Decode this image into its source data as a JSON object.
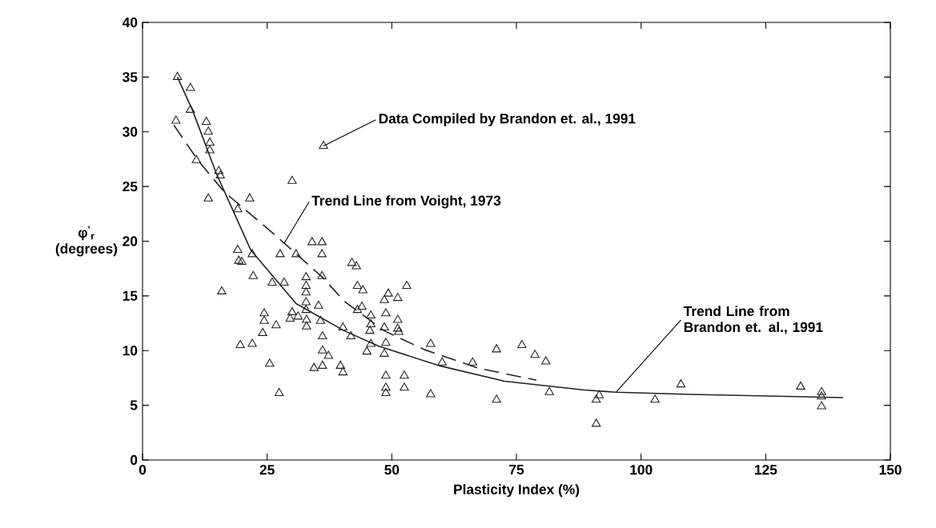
{
  "chart_data": {
    "type": "scatter",
    "xlabel": "Plasticity Index (%)",
    "ylabel": "φ$^{'}$$_{r}$ (degrees)",
    "xlim": [
      0,
      150
    ],
    "ylim": [
      0,
      40
    ],
    "xticks": [
      0,
      25,
      50,
      75,
      100,
      125,
      150
    ],
    "yticks": [
      0,
      5,
      10,
      15,
      20,
      25,
      30,
      35,
      40
    ],
    "grid": false,
    "marker": "triangle",
    "series": [
      {
        "color": "#222222",
        "x": [
          7,
          9.6,
          9.6,
          6.7,
          12.8,
          13.2,
          13.5,
          13.5,
          10.8,
          30,
          36.3,
          15.3,
          15.6,
          13.2,
          21.5,
          19.1,
          19.1,
          19.3,
          19.9,
          22,
          15.9,
          22.2,
          19.6,
          22,
          27.6,
          30.8,
          34,
          36,
          36,
          36,
          42,
          42.9,
          26,
          28.4,
          32.8,
          32.8,
          32.8,
          32.8,
          32.8,
          35.3,
          30,
          29.6,
          31.2,
          32.9,
          32.9,
          24.4,
          24.4,
          26.8,
          24.1,
          35.7,
          36.1,
          36.1,
          36.1,
          37.3,
          34.4,
          39.7,
          40.2,
          40.2,
          41.8,
          43.1,
          44.2,
          43.1,
          44,
          45.6,
          45.8,
          45.8,
          45.8,
          45,
          48.5,
          48.8,
          48.5,
          51.4,
          53,
          49.3,
          51.2,
          51.2,
          51.2,
          48.8,
          48.5,
          48.8,
          48.8,
          48.8,
          52.5,
          52.5,
          57.8,
          57.8,
          60.1,
          66.2,
          71,
          71,
          76.1,
          78.7,
          80.9,
          81.6,
          91,
          91.6,
          91,
          102.8,
          108,
          132,
          136.2,
          136.2,
          136.2,
          25.5,
          27.4
        ],
        "values": [
          35,
          34,
          32,
          31,
          30.9,
          30,
          29,
          28.3,
          27.4,
          25.5,
          28.7,
          26.4,
          26,
          23.9,
          23.9,
          22.9,
          19.2,
          18.2,
          18.1,
          18.8,
          15.4,
          16.8,
          10.5,
          10.6,
          18.8,
          18.8,
          19.9,
          19.9,
          18.8,
          16.8,
          18,
          17.7,
          16.2,
          16.2,
          16.7,
          15.9,
          15.3,
          14.4,
          13.7,
          14.1,
          13.5,
          12.9,
          13.1,
          12.8,
          12.2,
          13.4,
          12.7,
          12.3,
          11.6,
          12.7,
          11.3,
          10,
          8.6,
          9.5,
          8.4,
          8.6,
          8,
          12.1,
          11.3,
          15.9,
          15.5,
          13.7,
          14,
          11.8,
          13.2,
          12.4,
          10.6,
          9.9,
          14.6,
          13.4,
          12.1,
          11.7,
          15.9,
          15.2,
          14.8,
          12.8,
          12,
          10.7,
          9.7,
          7.7,
          6.6,
          6.1,
          7.7,
          6.6,
          10.6,
          6,
          8.9,
          8.9,
          10.1,
          5.5,
          10.5,
          9.6,
          9,
          6.2,
          5.5,
          5.9,
          3.3,
          5.5,
          6.9,
          6.7,
          6.2,
          5.8,
          4.9,
          8.8,
          6.1
        ]
      },
      {
        "type": "line",
        "color": "#222222",
        "marker": "none",
        "line_style": "dashed",
        "x": [
          6.3,
          11.1,
          16.4,
          26.5,
          36.1,
          40.5,
          48.5,
          56.5,
          67.3,
          79
        ],
        "values": [
          30.6,
          27.4,
          24.5,
          20.6,
          16.7,
          14.5,
          11.8,
          10.1,
          8.4,
          7.3
        ]
      },
      {
        "type": "line",
        "color": "#222222",
        "marker": "none",
        "line_style": "solid",
        "x": [
          7,
          10,
          14.8,
          21.7,
          30.8,
          40.5,
          47.4,
          59.7,
          72.6,
          88.6,
          95,
          110,
          140.5
        ],
        "values": [
          35,
          32,
          26.2,
          19.2,
          14.3,
          11.8,
          10.4,
          8.6,
          7.2,
          6.4,
          6.2,
          6.0,
          5.7
        ]
      }
    ],
    "annotations": [
      {
        "text": "Data Compiled by Brandon et. al., 1991",
        "x": 36.3,
        "y": 28.7
      },
      {
        "text": "Trend Line from Voight, 1973",
        "x": 28.4,
        "y": 19.8
      },
      {
        "text": "Trend Line from Brandon et. al., 1991",
        "x": 95,
        "y": 6.2
      }
    ]
  }
}
